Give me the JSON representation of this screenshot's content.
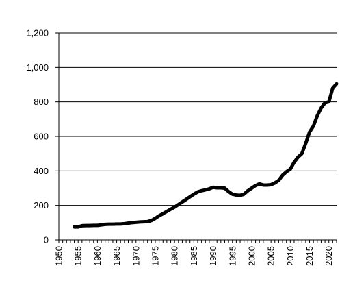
{
  "chart_data": {
    "type": "line",
    "title": "",
    "xlabel": "",
    "ylabel": "",
    "xlim": [
      1950,
      2022
    ],
    "ylim": [
      0,
      1200
    ],
    "x_ticks": [
      "1950",
      "1955",
      "1960",
      "1965",
      "1970",
      "1975",
      "1980",
      "1985",
      "1990",
      "1995",
      "2000",
      "2005",
      "2010",
      "2015",
      "2020"
    ],
    "y_ticks": [
      "0",
      "200",
      "400",
      "600",
      "800",
      "1,000",
      "1,200"
    ],
    "grid": "horizontal",
    "legend": "none",
    "line_color": "#000000",
    "series": [
      {
        "x": [
          1954,
          1955,
          1956,
          1957,
          1958,
          1959,
          1960,
          1961,
          1962,
          1963,
          1964,
          1965,
          1966,
          1967,
          1968,
          1969,
          1970,
          1971,
          1972,
          1973,
          1974,
          1975,
          1976,
          1977,
          1978,
          1979,
          1980,
          1981,
          1982,
          1983,
          1984,
          1985,
          1986,
          1987,
          1988,
          1989,
          1990,
          1991,
          1992,
          1993,
          1994,
          1995,
          1996,
          1997,
          1998,
          1999,
          2000,
          2001,
          2002,
          2003,
          2004,
          2005,
          2006,
          2007,
          2008,
          2009,
          2010,
          2011,
          2012,
          2013,
          2014,
          2015,
          2016,
          2017,
          2018,
          2019,
          2020,
          2021,
          2022
        ],
        "values": [
          75,
          75,
          82,
          83,
          83,
          84,
          84,
          87,
          90,
          91,
          91,
          92,
          92,
          94,
          97,
          100,
          102,
          104,
          105,
          106,
          112,
          125,
          140,
          152,
          165,
          178,
          190,
          205,
          220,
          235,
          250,
          265,
          278,
          285,
          290,
          296,
          305,
          302,
          302,
          300,
          280,
          265,
          260,
          258,
          265,
          285,
          300,
          315,
          325,
          318,
          318,
          320,
          330,
          345,
          375,
          395,
          410,
          450,
          480,
          500,
          560,
          625,
          660,
          720,
          765,
          795,
          800,
          880,
          905
        ]
      }
    ]
  }
}
